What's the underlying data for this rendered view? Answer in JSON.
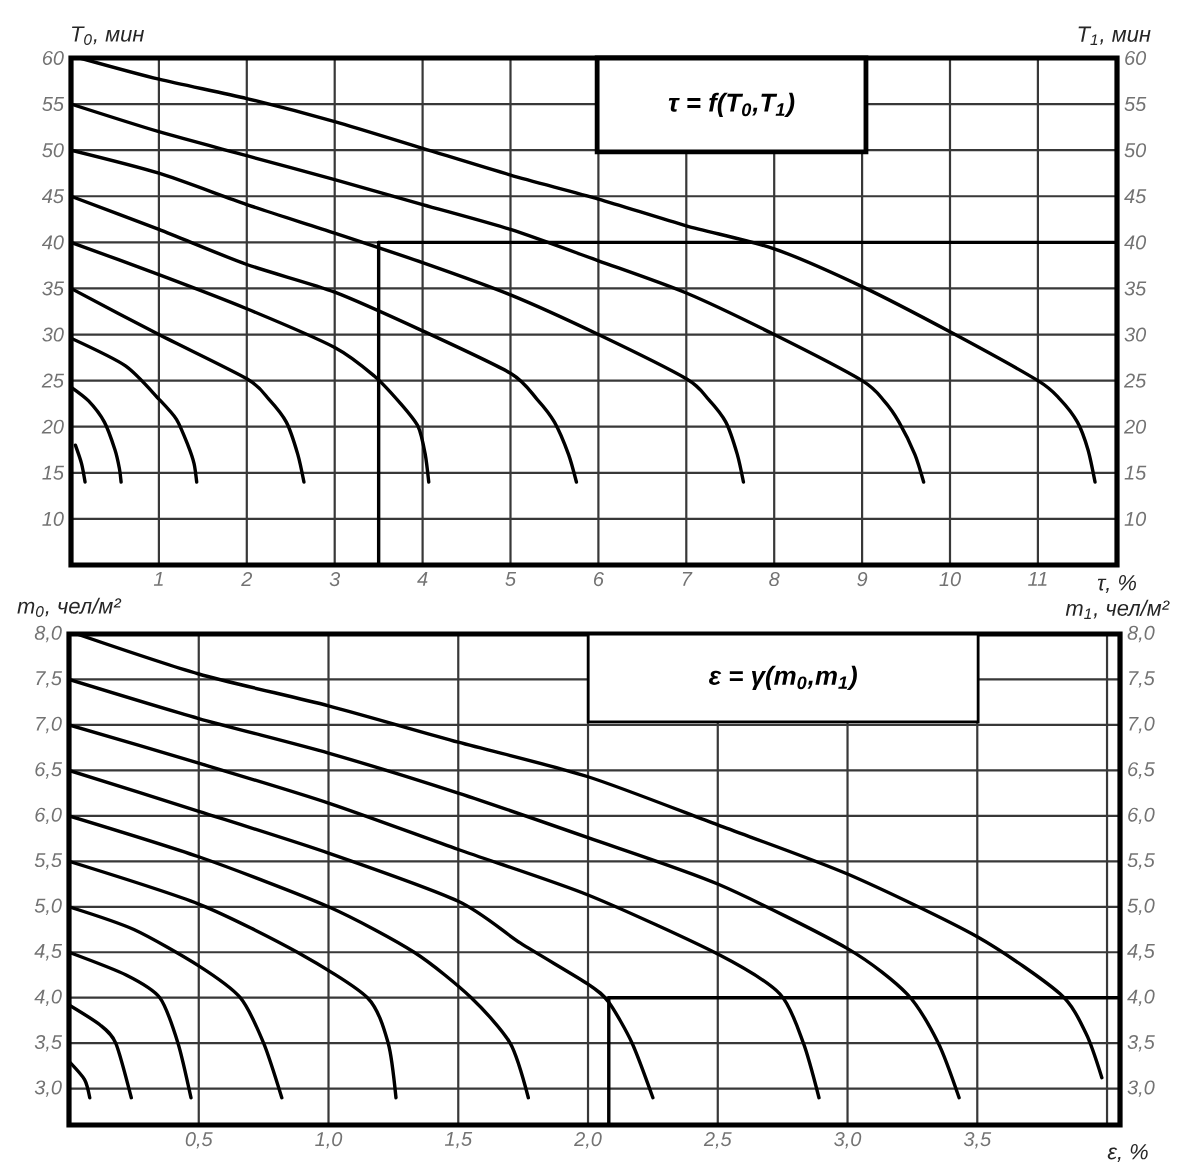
{
  "chart_data": [
    {
      "type": "line",
      "annotations": [
        "τ = f(T$_{0}$,T$_{1}$)"
      ],
      "xlabel": "τ, %",
      "ylabel": "T$_{0}$, мин",
      "y2label": "T$_{1}$, мин",
      "xlim": [
        0,
        11.9
      ],
      "xticks": [
        1,
        2,
        3,
        4,
        5,
        6,
        7,
        8,
        9,
        10,
        11
      ],
      "ylim": [
        5,
        60
      ],
      "yticks": [
        10,
        15,
        20,
        25,
        30,
        35,
        40,
        45,
        50,
        55,
        60
      ],
      "y2lim": [
        5,
        60
      ],
      "y2ticks": [
        10,
        15,
        20,
        25,
        30,
        35,
        40,
        45,
        50,
        55,
        60
      ],
      "grid": true,
      "series": [
        {
          "color": "#000000",
          "x": [
            0.1,
            1,
            2,
            3,
            4,
            5,
            6,
            7,
            8,
            9,
            10,
            11,
            11.25,
            11.45,
            11.57,
            11.65
          ],
          "values": [
            60,
            57.7,
            55.6,
            53.1,
            50.2,
            47.3,
            44.7,
            41.8,
            39.3,
            35.2,
            30.3,
            25,
            23,
            20.5,
            17.5,
            14
          ]
        },
        {
          "color": "#000000",
          "x": [
            0,
            1,
            2,
            3,
            4,
            5,
            6,
            7,
            8,
            9,
            9.25,
            9.42,
            9.6,
            9.7
          ],
          "values": [
            55,
            52,
            49.4,
            46.8,
            44.1,
            41.4,
            38,
            34.5,
            30,
            25,
            22.8,
            20.5,
            17,
            14
          ]
        },
        {
          "color": "#000000",
          "x": [
            0,
            1,
            2,
            3,
            4,
            5,
            6,
            7,
            7.25,
            7.45,
            7.58,
            7.65
          ],
          "values": [
            50,
            47.5,
            44.1,
            41,
            37.8,
            34.3,
            30,
            25.2,
            23,
            20.5,
            17,
            14
          ]
        },
        {
          "color": "#000000",
          "x": [
            0,
            1,
            2,
            3,
            4,
            5,
            5.3,
            5.5,
            5.66,
            5.75
          ],
          "values": [
            45,
            41.4,
            37.6,
            34.6,
            30.4,
            25.8,
            23,
            20.5,
            17,
            14
          ]
        },
        {
          "color": "#000000",
          "x": [
            0,
            1,
            2,
            3,
            3.45,
            3.75,
            3.95,
            4.03,
            4.07
          ],
          "values": [
            40,
            36.5,
            32.8,
            28.6,
            25.5,
            22.5,
            20,
            17,
            14
          ]
        },
        {
          "color": "#000000",
          "x": [
            0,
            1,
            2,
            2.25,
            2.45,
            2.58,
            2.65
          ],
          "values": [
            35,
            30,
            25.2,
            23,
            20.5,
            17,
            14
          ]
        },
        {
          "color": "#000000",
          "x": [
            0,
            0.62,
            1,
            1.2,
            1.33,
            1.4,
            1.43
          ],
          "values": [
            29.6,
            26.6,
            23,
            20.8,
            18,
            16,
            14
          ]
        },
        {
          "color": "#000000",
          "x": [
            0,
            0.2,
            0.38,
            0.5,
            0.55,
            0.57
          ],
          "values": [
            24.3,
            22.8,
            20.5,
            17.5,
            15.5,
            14
          ]
        },
        {
          "color": "#000000",
          "x": [
            0.05,
            0.12,
            0.16
          ],
          "values": [
            18,
            16,
            14
          ]
        },
        {
          "color": "#000000",
          "x": [
            3.5,
            3.5
          ],
          "values": [
            5,
            40
          ]
        },
        {
          "color": "#000000",
          "x": [
            3.5,
            11.9
          ],
          "values": [
            40,
            40
          ]
        }
      ]
    },
    {
      "type": "line",
      "annotations": [
        "ε = γ(m$_{0}$,m$_{1}$)"
      ],
      "xlabel": "ε, %",
      "ylabel": "m$_{0}$, чел/м²",
      "y2label": "m$_{1}$, чел/м²",
      "xlim": [
        0,
        4.05
      ],
      "xticks": [
        {
          "value": 0.5,
          "label": "0,5"
        },
        {
          "value": 1,
          "label": "1,0"
        },
        {
          "value": 1.5,
          "label": "1,5"
        },
        {
          "value": 2,
          "label": "2,0"
        },
        {
          "value": 2.5,
          "label": "2,5"
        },
        {
          "value": 3,
          "label": "3,0"
        },
        {
          "value": 3.5,
          "label": "3,5"
        },
        {
          "value": 4,
          "label": null
        }
      ],
      "ylim": [
        2.6,
        8
      ],
      "yticks": [
        {
          "value": 3,
          "label": "3,0"
        },
        {
          "value": 3.5,
          "label": "3,5"
        },
        {
          "value": 4,
          "label": "4,0"
        },
        {
          "value": 4.5,
          "label": "4,5"
        },
        {
          "value": 5,
          "label": "5,0"
        },
        {
          "value": 5.5,
          "label": "5,5"
        },
        {
          "value": 6,
          "label": "6,0"
        },
        {
          "value": 6.5,
          "label": "6,5"
        },
        {
          "value": 7,
          "label": "7,0"
        },
        {
          "value": 7.5,
          "label": "7,5"
        },
        {
          "value": 8,
          "label": "8,0"
        }
      ],
      "y2lim": [
        2.6,
        8
      ],
      "y2ticks": [
        {
          "value": 3,
          "label": "3,0"
        },
        {
          "value": 3.5,
          "label": "3,5"
        },
        {
          "value": 4,
          "label": "4,0"
        },
        {
          "value": 4.5,
          "label": "4,5"
        },
        {
          "value": 5,
          "label": "5,0"
        },
        {
          "value": 5.5,
          "label": "5,5"
        },
        {
          "value": 6,
          "label": "6,0"
        },
        {
          "value": 6.5,
          "label": "6,5"
        },
        {
          "value": 7,
          "label": "7,0"
        },
        {
          "value": 7.5,
          "label": "7,5"
        },
        {
          "value": 8,
          "label": "8,0"
        }
      ],
      "grid": true,
      "series": [
        {
          "color": "#000000",
          "x": [
            0.03,
            0.5,
            1,
            1.5,
            2,
            2.5,
            3,
            3.5,
            3.82,
            3.92,
            3.98
          ],
          "values": [
            8,
            7.56,
            7.21,
            6.81,
            6.43,
            5.9,
            5.36,
            4.67,
            4.04,
            3.6,
            3.12
          ]
        },
        {
          "color": "#000000",
          "x": [
            0,
            0.5,
            1,
            1.5,
            2,
            2.5,
            3,
            3.23,
            3.35,
            3.43
          ],
          "values": [
            7.5,
            7.07,
            6.69,
            6.25,
            5.76,
            5.25,
            4.54,
            4.04,
            3.5,
            2.9
          ]
        },
        {
          "color": "#000000",
          "x": [
            0,
            0.5,
            1,
            1.5,
            2,
            2.5,
            2.74,
            2.83,
            2.89
          ],
          "values": [
            7,
            6.58,
            6.14,
            5.63,
            5.13,
            4.48,
            4.04,
            3.5,
            2.9
          ]
        },
        {
          "color": "#000000",
          "x": [
            0,
            0.5,
            1,
            1.5,
            1.74,
            2,
            2.08,
            2.17,
            2.25
          ],
          "values": [
            6.5,
            6.05,
            5.59,
            5.06,
            4.6,
            4.15,
            3.95,
            3.5,
            2.9
          ]
        },
        {
          "color": "#000000",
          "x": [
            0,
            0.5,
            1,
            1.33,
            1.55,
            1.7,
            1.77
          ],
          "values": [
            6,
            5.55,
            5,
            4.5,
            4,
            3.5,
            2.9
          ]
        },
        {
          "color": "#000000",
          "x": [
            0,
            0.5,
            0.88,
            1.15,
            1.23,
            1.26
          ],
          "values": [
            5.5,
            5.03,
            4.5,
            4,
            3.5,
            2.9
          ]
        },
        {
          "color": "#000000",
          "x": [
            0,
            0.25,
            0.5,
            0.66,
            0.75,
            0.82
          ],
          "values": [
            5,
            4.75,
            4.35,
            4,
            3.5,
            2.9
          ]
        },
        {
          "color": "#000000",
          "x": [
            0,
            0.22,
            0.35,
            0.42,
            0.47
          ],
          "values": [
            4.5,
            4.25,
            4,
            3.5,
            2.9
          ]
        },
        {
          "color": "#000000",
          "x": [
            0,
            0.12,
            0.18,
            0.24
          ],
          "values": [
            3.92,
            3.7,
            3.5,
            2.9
          ]
        },
        {
          "color": "#000000",
          "x": [
            0,
            0.06,
            0.08
          ],
          "values": [
            3.3,
            3.1,
            2.9
          ]
        },
        {
          "color": "#000000",
          "x": [
            2.08,
            2.08
          ],
          "values": [
            2.6,
            4
          ]
        },
        {
          "color": "#000000",
          "x": [
            2.08,
            4.05
          ],
          "values": [
            4,
            4
          ]
        }
      ]
    }
  ]
}
